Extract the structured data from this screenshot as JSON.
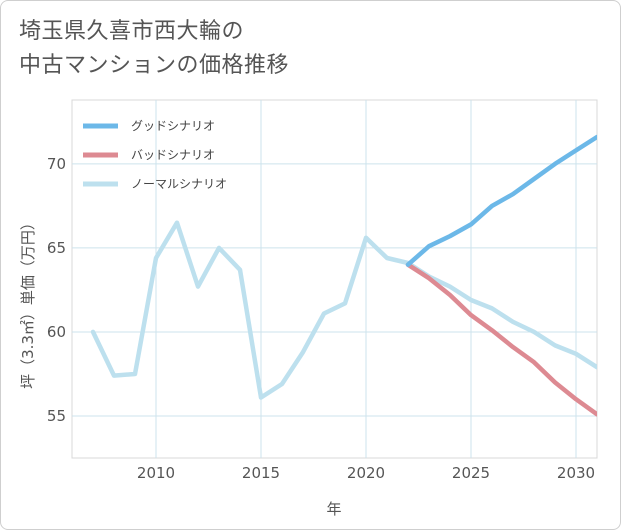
{
  "title": {
    "line1": "埼玉県久喜市西大輪の",
    "line2": "中古マンションの価格推移"
  },
  "chart_data": {
    "type": "line",
    "xlabel": "年",
    "ylabel": "坪（3.3㎡）単価（万円）",
    "xlim": [
      2006,
      2031
    ],
    "ylim": [
      52.5,
      73.8
    ],
    "xticks": [
      2010,
      2015,
      2020,
      2025,
      2030
    ],
    "yticks": [
      55,
      60,
      65,
      70
    ],
    "grid": true,
    "legend_position": "top-left",
    "series": [
      {
        "name": "グッドシナリオ",
        "color": "#6cb8e8",
        "x": [
          2022,
          2023,
          2024,
          2025,
          2026,
          2027,
          2028,
          2029,
          2030,
          2031
        ],
        "values": [
          64.0,
          65.1,
          65.7,
          66.4,
          67.5,
          68.2,
          69.1,
          70.0,
          70.8,
          71.6
        ]
      },
      {
        "name": "バッドシナリオ",
        "color": "#dd8a92",
        "x": [
          2022,
          2023,
          2024,
          2025,
          2026,
          2027,
          2028,
          2029,
          2030,
          2031
        ],
        "values": [
          64.0,
          63.2,
          62.2,
          61.0,
          60.1,
          59.1,
          58.2,
          57.0,
          56.0,
          55.1
        ]
      },
      {
        "name": "ノーマルシナリオ",
        "color": "#bde0ee",
        "x": [
          2007,
          2008,
          2009,
          2010,
          2011,
          2012,
          2013,
          2014,
          2015,
          2016,
          2017,
          2018,
          2019,
          2020,
          2021,
          2022,
          2023,
          2024,
          2025,
          2026,
          2027,
          2028,
          2029,
          2030,
          2031
        ],
        "values": [
          60.0,
          57.4,
          57.5,
          64.4,
          66.5,
          62.7,
          65.0,
          63.7,
          56.1,
          56.9,
          58.8,
          61.1,
          61.7,
          65.6,
          64.4,
          64.1,
          63.3,
          62.7,
          61.9,
          61.4,
          60.6,
          60.0,
          59.2,
          58.7,
          57.9
        ]
      }
    ]
  }
}
